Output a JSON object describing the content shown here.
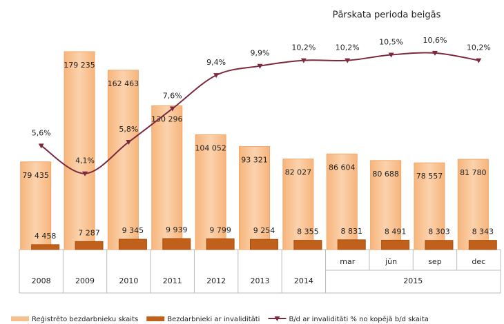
{
  "chart_data": {
    "type": "bar_line",
    "title": "Pārskata perioda beigās",
    "categories": [
      "2008",
      "2009",
      "2010",
      "2011",
      "2012",
      "2013",
      "2014",
      "mar",
      "jūn",
      "sep",
      "dec"
    ],
    "category_groups": [
      {
        "label": "2015",
        "from": "mar",
        "to": "dec"
      }
    ],
    "series": [
      {
        "name": "Reģistrēto bezdarbnieku skaits",
        "color": "#f9c08f",
        "type": "bar",
        "values": [
          79435,
          179235,
          162463,
          130296,
          104052,
          93321,
          82027,
          86604,
          80688,
          78557,
          81780
        ],
        "value_labels": [
          "79 435",
          "179 235",
          "162 463",
          "130 296",
          "104 052",
          "93 321",
          "82 027",
          "86 604",
          "80 688",
          "78 557",
          "81 780"
        ]
      },
      {
        "name": "Bezdarbnieki ar invaliditāti",
        "color": "#c0601a",
        "type": "bar",
        "values": [
          4458,
          7287,
          9345,
          9939,
          9799,
          9254,
          8355,
          8831,
          8491,
          8303,
          8343
        ],
        "value_labels": [
          "4 458",
          "7 287",
          "9 345",
          "9 939",
          "9 799",
          "9 254",
          "8 355",
          "8 831",
          "8 491",
          "8 303",
          "8 343"
        ]
      },
      {
        "name": "B/d ar invaliditāti % no kopējā b/d skaita",
        "color": "#7b2a3e",
        "type": "line",
        "axis": "y2",
        "values": [
          5.6,
          4.1,
          5.8,
          7.6,
          9.4,
          9.9,
          10.2,
          10.2,
          10.5,
          10.6,
          10.2
        ],
        "value_labels": [
          "5,6%",
          "4,1%",
          "5,8%",
          "7,6%",
          "9,4%",
          "9,9%",
          "10,2%",
          "10,2%",
          "10,5%",
          "10,6%",
          "10,2%"
        ]
      }
    ]
  }
}
